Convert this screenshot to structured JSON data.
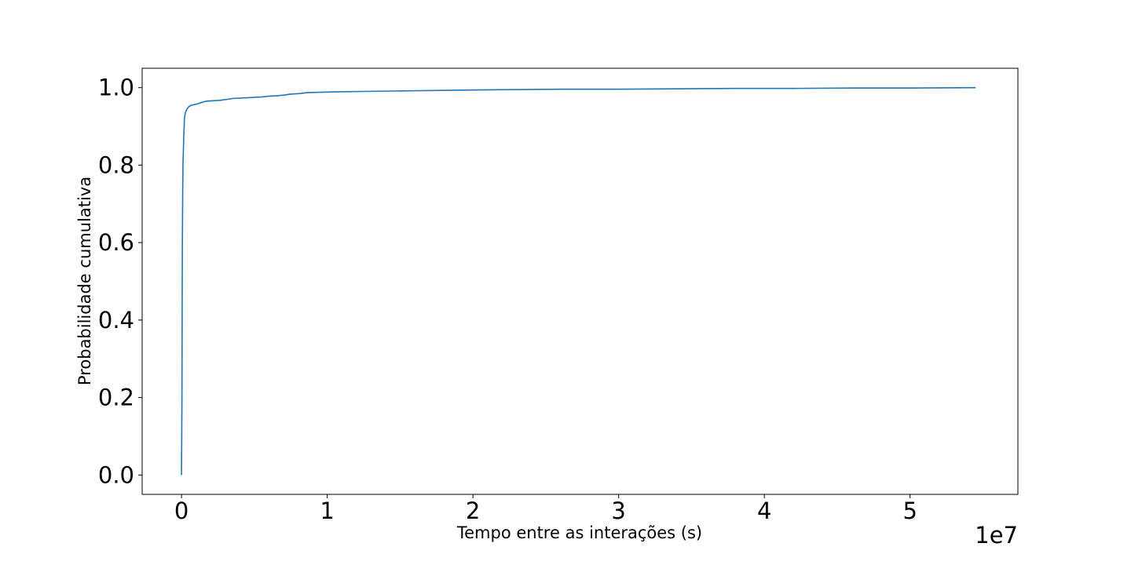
{
  "chart_data": {
    "type": "line",
    "title": "",
    "xlabel": "Tempo entre as interações (s)",
    "ylabel": "Probabilidade cumulativa",
    "x_offset_label": "1e7",
    "x_scale_factor": 10000000,
    "xlim": [
      -2700000,
      57400000
    ],
    "ylim": [
      -0.05,
      1.05
    ],
    "xticks": [
      0,
      10000000,
      20000000,
      30000000,
      40000000,
      50000000
    ],
    "xtick_labels": [
      "0",
      "1",
      "2",
      "3",
      "4",
      "5"
    ],
    "yticks": [
      0.0,
      0.2,
      0.4,
      0.6,
      0.8,
      1.0
    ],
    "ytick_labels": [
      "0.0",
      "0.2",
      "0.4",
      "0.6",
      "0.8",
      "1.0"
    ],
    "grid": false,
    "legend": "none",
    "colors": {
      "line": "#1f77b4",
      "axes": "#000000",
      "background": "#ffffff"
    },
    "series": [
      {
        "x": [
          0,
          30000,
          50000,
          60000,
          80000,
          100000,
          130000,
          160000,
          200000,
          260000,
          320000,
          400000,
          500000,
          650000,
          850000,
          1100000,
          1400000,
          1700000,
          2100000,
          2600000,
          3000000,
          3500000,
          4000000,
          4500000,
          5000000,
          5500000,
          6000000,
          6500000,
          7100000,
          7400000,
          7800000,
          8200000,
          8600000,
          9500000,
          10500000,
          12000000,
          14000000,
          16000000,
          18000000,
          20000000,
          23000000,
          26000000,
          30000000,
          34000000,
          38000000,
          42000000,
          46000000,
          50000000,
          54500000
        ],
        "y": [
          0.0,
          0.2,
          0.5,
          0.6,
          0.72,
          0.8,
          0.84,
          0.88,
          0.92,
          0.935,
          0.941,
          0.946,
          0.951,
          0.954,
          0.956,
          0.958,
          0.962,
          0.965,
          0.966,
          0.967,
          0.969,
          0.972,
          0.973,
          0.974,
          0.975,
          0.976,
          0.978,
          0.979,
          0.981,
          0.983,
          0.984,
          0.985,
          0.987,
          0.988,
          0.989,
          0.99,
          0.991,
          0.992,
          0.993,
          0.994,
          0.995,
          0.996,
          0.996,
          0.997,
          0.998,
          0.998,
          0.999,
          0.999,
          1.0
        ]
      }
    ]
  }
}
